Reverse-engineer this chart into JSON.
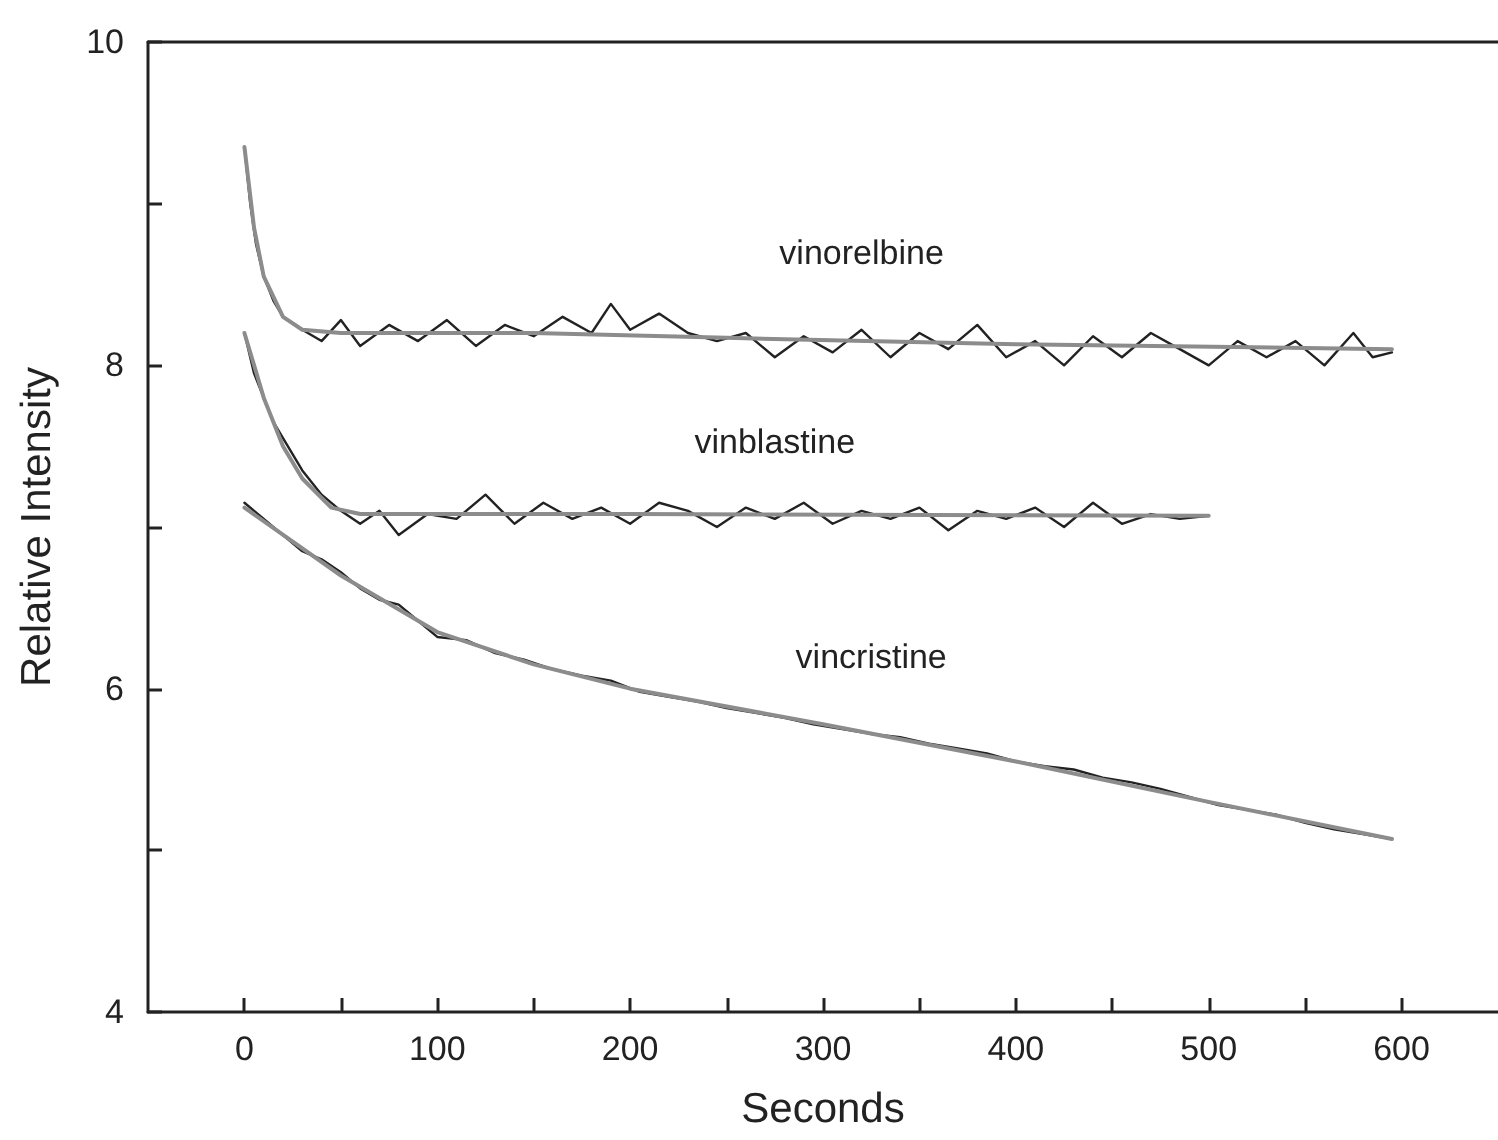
{
  "chart_data": {
    "type": "line",
    "xlabel": "Seconds",
    "ylabel": "Relative Intensity",
    "xlim": [
      -50,
      650
    ],
    "ylim": [
      4,
      10
    ],
    "xticks": [
      0,
      {
        "value": 50,
        "label": null
      },
      100,
      {
        "value": 150,
        "label": null
      },
      200,
      {
        "value": 250,
        "label": null
      },
      300,
      {
        "value": 350,
        "label": null
      },
      400,
      {
        "value": 450,
        "label": null
      },
      500,
      {
        "value": 550,
        "label": null
      },
      600
    ],
    "yticks": [
      4,
      {
        "value": 5,
        "label": null
      },
      6,
      {
        "value": 7,
        "label": null
      },
      8,
      {
        "value": 9,
        "label": null
      },
      10
    ],
    "grid": false,
    "legend": false,
    "marker": "none",
    "line_style": "solid",
    "series": [
      {
        "name": "vinorelbine",
        "color": "#222222",
        "x": [
          0,
          3,
          6,
          10,
          15,
          20,
          30,
          40,
          50,
          60,
          75,
          90,
          105,
          120,
          135,
          150,
          165,
          180,
          190,
          200,
          215,
          230,
          245,
          260,
          275,
          290,
          305,
          320,
          335,
          350,
          365,
          380,
          395,
          410,
          425,
          440,
          455,
          470,
          485,
          500,
          515,
          530,
          545,
          560,
          575,
          585,
          595
        ],
        "values": [
          9.35,
          9.0,
          8.75,
          8.55,
          8.4,
          8.3,
          8.22,
          8.15,
          8.28,
          8.12,
          8.25,
          8.15,
          8.28,
          8.12,
          8.25,
          8.18,
          8.3,
          8.2,
          8.38,
          8.22,
          8.32,
          8.2,
          8.15,
          8.2,
          8.05,
          8.18,
          8.08,
          8.22,
          8.05,
          8.2,
          8.1,
          8.25,
          8.05,
          8.15,
          8.0,
          8.18,
          8.05,
          8.2,
          8.1,
          8.0,
          8.15,
          8.05,
          8.15,
          8.0,
          8.2,
          8.05,
          8.08
        ]
      },
      {
        "color": "#8c8c8c",
        "x": [
          0,
          5,
          10,
          20,
          30,
          50,
          150,
          250,
          400,
          595
        ],
        "values": [
          9.35,
          8.85,
          8.55,
          8.3,
          8.22,
          8.2,
          8.2,
          8.17,
          8.13,
          8.1
        ]
      },
      {
        "name": "vinblastine",
        "color": "#222222",
        "x": [
          0,
          5,
          10,
          15,
          20,
          30,
          40,
          50,
          60,
          70,
          80,
          95,
          110,
          125,
          140,
          155,
          170,
          185,
          200,
          215,
          230,
          245,
          260,
          275,
          290,
          305,
          320,
          335,
          350,
          365,
          380,
          395,
          410,
          425,
          440,
          455,
          470,
          485,
          500
        ],
        "values": [
          8.2,
          7.95,
          7.8,
          7.65,
          7.55,
          7.35,
          7.2,
          7.1,
          7.02,
          7.1,
          6.95,
          7.08,
          7.05,
          7.2,
          7.02,
          7.15,
          7.05,
          7.12,
          7.02,
          7.15,
          7.1,
          7.0,
          7.12,
          7.05,
          7.15,
          7.02,
          7.1,
          7.05,
          7.12,
          6.98,
          7.1,
          7.05,
          7.12,
          7.0,
          7.15,
          7.02,
          7.08,
          7.05,
          7.07
        ]
      },
      {
        "color": "#8c8c8c",
        "x": [
          0,
          10,
          20,
          30,
          45,
          60,
          200,
          500
        ],
        "values": [
          8.2,
          7.8,
          7.5,
          7.3,
          7.12,
          7.08,
          7.08,
          7.07
        ]
      },
      {
        "name": "vincristine",
        "color": "#222222",
        "x": [
          0,
          10,
          20,
          30,
          40,
          50,
          60,
          70,
          80,
          90,
          100,
          115,
          130,
          145,
          160,
          175,
          190,
          205,
          220,
          235,
          250,
          265,
          280,
          295,
          310,
          325,
          340,
          355,
          370,
          385,
          400,
          415,
          430,
          445,
          460,
          475,
          490,
          505,
          520,
          535,
          550,
          565,
          580,
          595
        ],
        "values": [
          7.15,
          7.05,
          6.95,
          6.85,
          6.8,
          6.72,
          6.62,
          6.55,
          6.52,
          6.42,
          6.32,
          6.3,
          6.22,
          6.18,
          6.12,
          6.08,
          6.05,
          5.98,
          5.95,
          5.92,
          5.88,
          5.85,
          5.82,
          5.78,
          5.75,
          5.72,
          5.7,
          5.66,
          5.63,
          5.6,
          5.55,
          5.52,
          5.5,
          5.45,
          5.42,
          5.38,
          5.33,
          5.28,
          5.25,
          5.22,
          5.17,
          5.13,
          5.1,
          5.07
        ]
      },
      {
        "color": "#8c8c8c",
        "x": [
          0,
          50,
          100,
          150,
          200,
          300,
          400,
          500,
          595
        ],
        "values": [
          7.12,
          6.7,
          6.35,
          6.15,
          6.0,
          5.78,
          5.55,
          5.3,
          5.07
        ]
      }
    ]
  }
}
